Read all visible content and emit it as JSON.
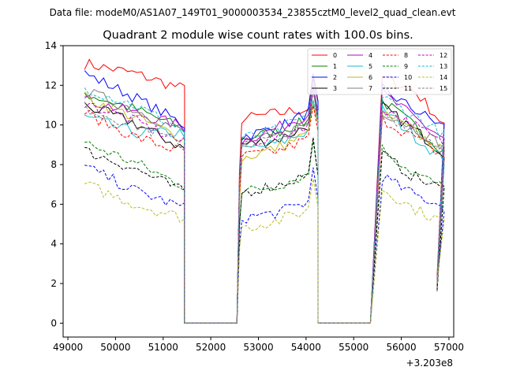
{
  "chart_data": {
    "type": "line",
    "suptitle": "Data file: modeM0/AS1A07_149T01_9000003534_23855cztM0_level2_quad_clean.evt",
    "title": "Quadrant 2 module wise count rates with 100.0s bins.",
    "xlabel": "",
    "ylabel": "",
    "x_offset_label": "+3.203e8",
    "xlim": [
      48900,
      57100
    ],
    "ylim": [
      -0.7,
      14.0
    ],
    "x_ticks": [
      49000,
      50000,
      51000,
      52000,
      53000,
      54000,
      55000,
      56000,
      57000
    ],
    "y_ticks": [
      0,
      2,
      4,
      6,
      8,
      10,
      12,
      14
    ],
    "segments": [
      {
        "start": 49350,
        "n": 22
      },
      {
        "start": 52550,
        "n": 17
      },
      {
        "start": 55450,
        "n": 14
      }
    ],
    "gaps": [
      {
        "from": 51450,
        "to": 52550
      },
      {
        "from": 54250,
        "to": 55350
      }
    ],
    "bin_seconds": 100,
    "legend_location": "upper-right",
    "series": [
      {
        "name": "0",
        "color": "#ff0000",
        "dash": "solid",
        "seg1": [
          13.1,
          12.6,
          11.8
        ],
        "seg2": [
          10.3,
          10.6,
          10.9
        ],
        "seg3": [
          12.4,
          11.8,
          10.0
        ]
      },
      {
        "name": "1",
        "color": "#008000",
        "dash": "solid",
        "seg1": [
          11.6,
          10.8,
          9.8
        ],
        "seg2": [
          9.3,
          9.7,
          10.4
        ],
        "seg3": [
          11.2,
          10.0,
          8.7
        ]
      },
      {
        "name": "2",
        "color": "#0000ff",
        "dash": "solid",
        "seg1": [
          12.6,
          11.4,
          10.0
        ],
        "seg2": [
          9.4,
          9.9,
          10.9
        ],
        "seg3": [
          11.8,
          10.8,
          9.9
        ]
      },
      {
        "name": "3",
        "color": "#000000",
        "dash": "solid",
        "seg1": [
          11.0,
          10.1,
          8.8
        ],
        "seg2": [
          9.0,
          9.3,
          10.2
        ],
        "seg3": [
          10.9,
          9.8,
          8.6
        ]
      },
      {
        "name": "4",
        "color": "#bf00bf",
        "dash": "solid",
        "seg1": [
          11.3,
          10.6,
          9.9
        ],
        "seg2": [
          9.2,
          9.9,
          10.8
        ],
        "seg3": [
          11.6,
          10.4,
          9.3
        ]
      },
      {
        "name": "5",
        "color": "#17becf",
        "dash": "solid",
        "seg1": [
          10.4,
          9.6,
          9.6
        ],
        "seg2": [
          8.7,
          9.1,
          9.9
        ],
        "seg3": [
          10.8,
          9.5,
          8.2
        ]
      },
      {
        "name": "6",
        "color": "#bcbd22",
        "dash": "solid",
        "seg1": [
          11.4,
          10.4,
          9.3
        ],
        "seg2": [
          8.3,
          8.9,
          9.8
        ],
        "seg3": [
          10.6,
          9.7,
          8.6
        ]
      },
      {
        "name": "7",
        "color": "#7f7f7f",
        "dash": "solid",
        "seg1": [
          11.7,
          10.8,
          9.6
        ],
        "seg2": [
          9.0,
          9.5,
          10.3
        ],
        "seg3": [
          10.7,
          9.9,
          8.9
        ]
      },
      {
        "name": "8",
        "color": "#ff0000",
        "dash": "dashed",
        "seg1": [
          10.6,
          9.4,
          8.6
        ],
        "seg2": [
          8.4,
          8.7,
          9.5
        ],
        "seg3": [
          10.3,
          9.4,
          8.4
        ]
      },
      {
        "name": "9",
        "color": "#008000",
        "dash": "dashed",
        "seg1": [
          9.1,
          8.1,
          6.9
        ],
        "seg2": [
          6.6,
          7.0,
          7.7
        ],
        "seg3": [
          8.8,
          7.6,
          6.8
        ]
      },
      {
        "name": "10",
        "color": "#0000ff",
        "dash": "dashed",
        "seg1": [
          7.9,
          6.7,
          5.8
        ],
        "seg2": [
          5.3,
          5.6,
          6.3
        ],
        "seg3": [
          7.4,
          6.5,
          5.9
        ]
      },
      {
        "name": "11",
        "color": "#000000",
        "dash": "dashed",
        "seg1": [
          8.7,
          7.8,
          6.6
        ],
        "seg2": [
          6.6,
          7.0,
          7.7
        ],
        "seg3": [
          8.5,
          7.4,
          6.7
        ]
      },
      {
        "name": "12",
        "color": "#bf00bf",
        "dash": "dashed",
        "seg1": [
          11.1,
          10.2,
          9.1
        ],
        "seg2": [
          9.1,
          9.4,
          10.3
        ],
        "seg3": [
          10.9,
          10.0,
          9.0
        ]
      },
      {
        "name": "13",
        "color": "#17becf",
        "dash": "dashed",
        "seg1": [
          11.9,
          11.0,
          9.7
        ],
        "seg2": [
          9.3,
          9.8,
          10.7
        ],
        "seg3": [
          11.4,
          10.5,
          9.5
        ]
      },
      {
        "name": "14",
        "color": "#bcbd22",
        "dash": "dashed",
        "seg1": [
          7.0,
          6.0,
          5.3
        ],
        "seg2": [
          4.8,
          5.2,
          5.9
        ],
        "seg3": [
          6.8,
          5.8,
          5.1
        ]
      },
      {
        "name": "15",
        "color": "#7f7f7f",
        "dash": "dashed",
        "seg1": [
          10.9,
          10.0,
          9.0
        ],
        "seg2": [
          9.0,
          9.4,
          10.1
        ],
        "seg3": [
          10.6,
          9.8,
          8.8
        ]
      }
    ]
  }
}
